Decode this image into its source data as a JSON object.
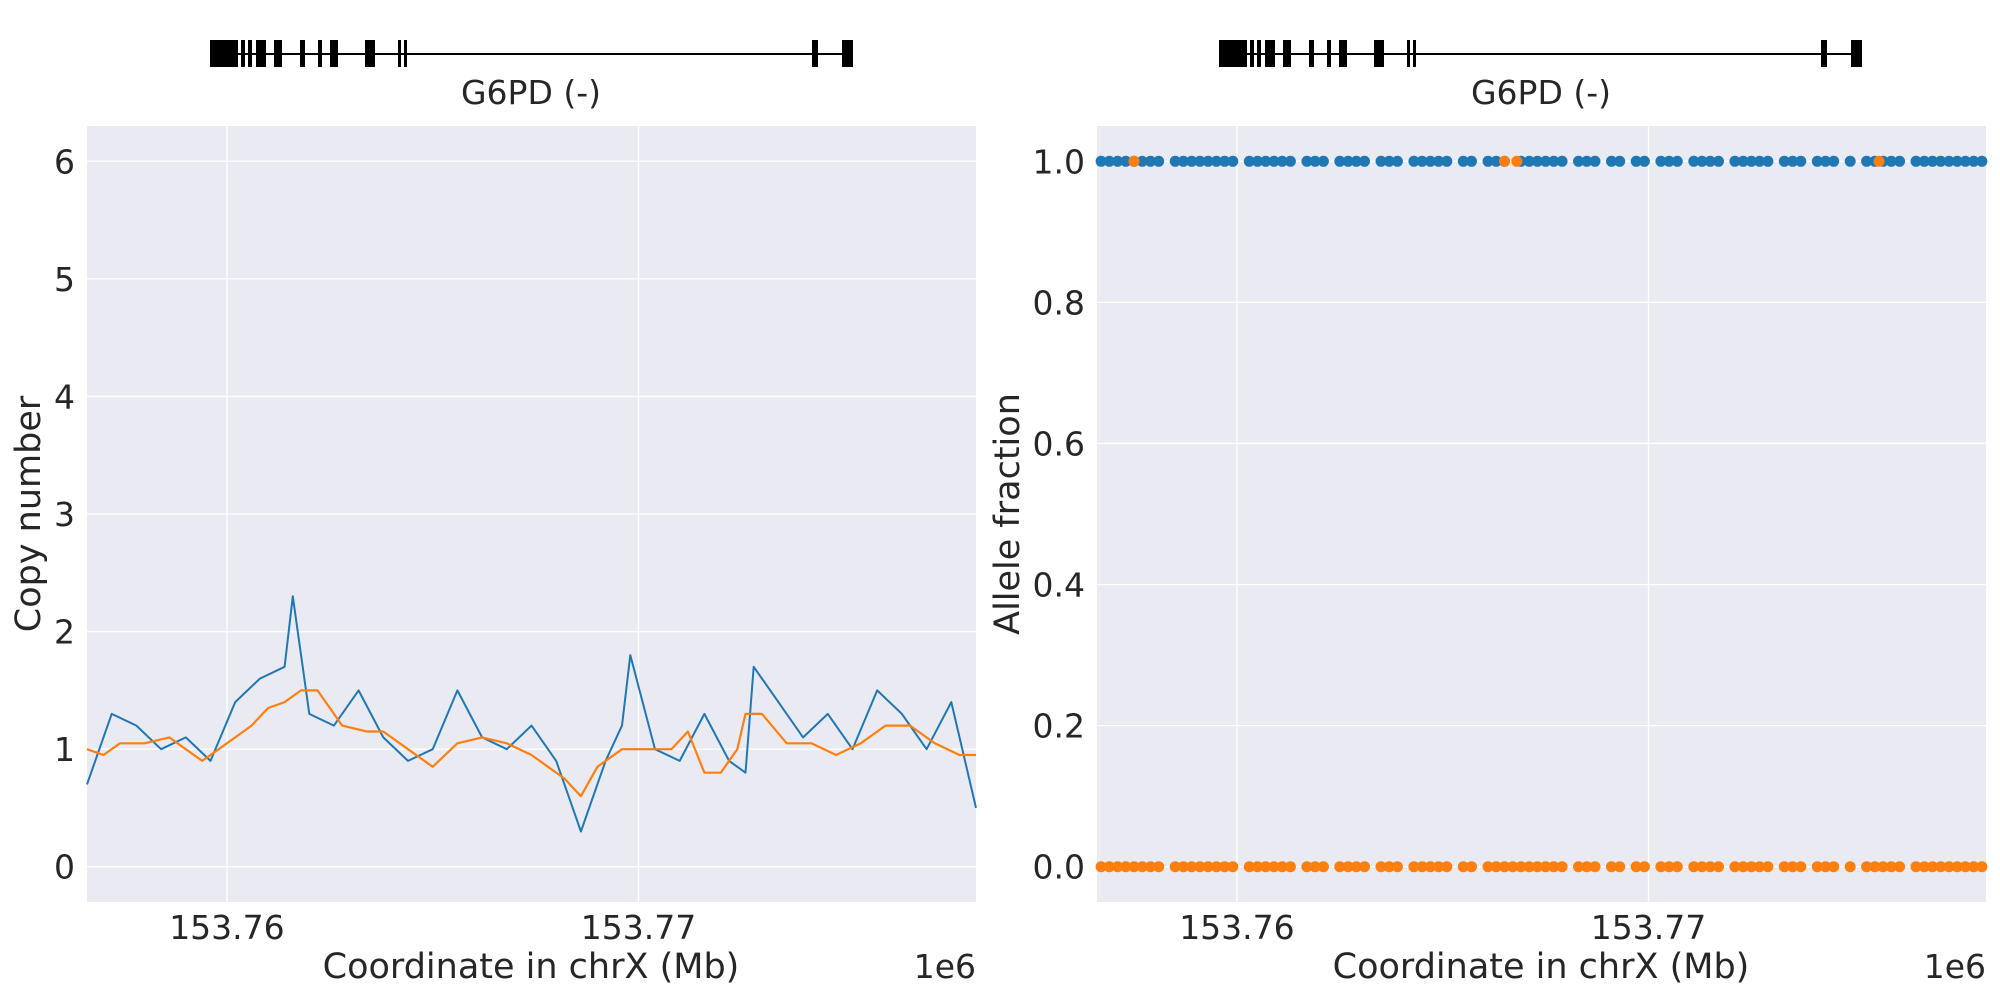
{
  "chart_data": [
    {
      "type": "line",
      "gene_label": "G6PD (-)",
      "xlabel": "Coordinate in chrX (Mb)",
      "ylabel": "Copy number",
      "offset_label": "1e6",
      "xlim": [
        153.7566,
        153.7782
      ],
      "ylim": [
        -0.3,
        6.3
      ],
      "xticks": [
        153.76,
        153.77
      ],
      "xtick_labels": [
        "153.76",
        "153.77"
      ],
      "yticks": [
        0,
        1,
        2,
        3,
        4,
        5,
        6
      ],
      "ytick_labels": [
        "0",
        "1",
        "2",
        "3",
        "4",
        "5",
        "6"
      ],
      "grid": true,
      "colors": {
        "background": "#eaeaf2",
        "raw": "#1f77b4",
        "smoothed": "#ff7f0e"
      },
      "series": [
        {
          "role": "raw",
          "x": [
            153.7566,
            153.7572,
            153.7578,
            153.7584,
            153.759,
            153.7596,
            153.7602,
            153.7608,
            153.7614,
            153.7616,
            153.762,
            153.7626,
            153.7632,
            153.7638,
            153.7644,
            153.765,
            153.7656,
            153.7662,
            153.7668,
            153.7674,
            153.768,
            153.7684,
            153.7686,
            153.7692,
            153.7696,
            153.7698,
            153.7704,
            153.771,
            153.7716,
            153.7722,
            153.7726,
            153.7728,
            153.7734,
            153.774,
            153.7746,
            153.7752,
            153.7758,
            153.7764,
            153.777,
            153.7776,
            153.7782
          ],
          "y": [
            0.7,
            1.3,
            1.2,
            1.0,
            1.1,
            0.9,
            1.4,
            1.6,
            1.7,
            2.3,
            1.3,
            1.2,
            1.5,
            1.1,
            0.9,
            1.0,
            1.5,
            1.1,
            1.0,
            1.2,
            0.9,
            0.5,
            0.3,
            0.9,
            1.2,
            1.8,
            1.0,
            0.9,
            1.3,
            0.9,
            0.8,
            1.7,
            1.4,
            1.1,
            1.3,
            1.0,
            1.5,
            1.3,
            1.0,
            1.4,
            0.5
          ]
        },
        {
          "role": "smoothed",
          "x": [
            153.7566,
            153.757,
            153.7574,
            153.758,
            153.7586,
            153.759,
            153.7594,
            153.7598,
            153.7602,
            153.7606,
            153.761,
            153.7614,
            153.7618,
            153.7622,
            153.7628,
            153.7634,
            153.7638,
            153.7644,
            153.765,
            153.7656,
            153.7662,
            153.7668,
            153.7674,
            153.7678,
            153.7682,
            153.7686,
            153.769,
            153.7696,
            153.7702,
            153.7708,
            153.7712,
            153.7716,
            153.772,
            153.7724,
            153.7726,
            153.773,
            153.7736,
            153.7742,
            153.7748,
            153.7754,
            153.776,
            153.7766,
            153.7772,
            153.7778,
            153.7782
          ],
          "y": [
            1.0,
            0.95,
            1.05,
            1.05,
            1.1,
            1.0,
            0.9,
            1.0,
            1.1,
            1.2,
            1.35,
            1.4,
            1.5,
            1.5,
            1.2,
            1.15,
            1.15,
            1.0,
            0.85,
            1.05,
            1.1,
            1.05,
            0.95,
            0.85,
            0.75,
            0.6,
            0.85,
            1.0,
            1.0,
            1.0,
            1.15,
            0.8,
            0.8,
            1.0,
            1.3,
            1.3,
            1.05,
            1.05,
            0.95,
            1.05,
            1.2,
            1.2,
            1.05,
            0.95,
            0.95
          ]
        }
      ]
    },
    {
      "type": "scatter",
      "gene_label": "G6PD (-)",
      "xlabel": "Coordinate in chrX (Mb)",
      "ylabel": "Allele fraction",
      "offset_label": "1e6",
      "xlim": [
        153.7566,
        153.7782
      ],
      "ylim": [
        -0.05,
        1.05
      ],
      "xticks": [
        153.76,
        153.77
      ],
      "xtick_labels": [
        "153.76",
        "153.77"
      ],
      "yticks": [
        0.0,
        0.2,
        0.4,
        0.6,
        0.8,
        1.0
      ],
      "ytick_labels": [
        "0.0",
        "0.2",
        "0.4",
        "0.6",
        "0.8",
        "1.0"
      ],
      "grid": true,
      "colors": {
        "background": "#eaeaf2",
        "points_top": "#1f77b4",
        "points_bottom": "#ff7f0e"
      },
      "series": [
        {
          "role": "allele-fraction-1",
          "y_value": 1.0,
          "x": [
            153.7567,
            153.7569,
            153.7571,
            153.7573,
            153.7575,
            153.7577,
            153.7579,
            153.7581,
            153.7585,
            153.7587,
            153.7589,
            153.7591,
            153.7593,
            153.7595,
            153.7597,
            153.7599,
            153.7603,
            153.7605,
            153.7607,
            153.7609,
            153.7611,
            153.7613,
            153.7617,
            153.7619,
            153.7621,
            153.7625,
            153.7627,
            153.7629,
            153.7631,
            153.7635,
            153.7637,
            153.7639,
            153.7643,
            153.7645,
            153.7647,
            153.7649,
            153.7651,
            153.7655,
            153.7657,
            153.7661,
            153.7663,
            153.7665,
            153.7669,
            153.7671,
            153.7673,
            153.7675,
            153.7677,
            153.7679,
            153.7683,
            153.7685,
            153.7687,
            153.7691,
            153.7693,
            153.7697,
            153.7699,
            153.7703,
            153.7705,
            153.7707,
            153.7711,
            153.7713,
            153.7715,
            153.7717,
            153.7721,
            153.7723,
            153.7725,
            153.7727,
            153.7729,
            153.7733,
            153.7735,
            153.7737,
            153.7741,
            153.7743,
            153.7745,
            153.7749,
            153.7753,
            153.7755,
            153.7757,
            153.7759,
            153.7761,
            153.7765,
            153.7767,
            153.7769,
            153.7771,
            153.7773,
            153.7775,
            153.7777,
            153.7779,
            153.7781
          ]
        },
        {
          "role": "allele-fraction-1-orange",
          "y_value": 1.0,
          "x": [
            153.7575,
            153.7665,
            153.7668,
            153.7756
          ]
        },
        {
          "role": "allele-fraction-0",
          "y_value": 0.0,
          "x": [
            153.7567,
            153.7569,
            153.7571,
            153.7573,
            153.7575,
            153.7577,
            153.7579,
            153.7581,
            153.7585,
            153.7587,
            153.7589,
            153.7591,
            153.7593,
            153.7595,
            153.7597,
            153.7599,
            153.7603,
            153.7605,
            153.7607,
            153.7609,
            153.7611,
            153.7613,
            153.7617,
            153.7619,
            153.7621,
            153.7625,
            153.7627,
            153.7629,
            153.7631,
            153.7635,
            153.7637,
            153.7639,
            153.7643,
            153.7645,
            153.7647,
            153.7649,
            153.7651,
            153.7655,
            153.7657,
            153.7661,
            153.7663,
            153.7665,
            153.7667,
            153.7669,
            153.7671,
            153.7673,
            153.7675,
            153.7677,
            153.7679,
            153.7683,
            153.7685,
            153.7687,
            153.7691,
            153.7693,
            153.7697,
            153.7699,
            153.7703,
            153.7705,
            153.7707,
            153.7711,
            153.7713,
            153.7715,
            153.7717,
            153.7721,
            153.7723,
            153.7725,
            153.7727,
            153.7729,
            153.7733,
            153.7735,
            153.7737,
            153.7741,
            153.7743,
            153.7745,
            153.7749,
            153.7753,
            153.7755,
            153.7757,
            153.7759,
            153.7761,
            153.7765,
            153.7767,
            153.7769,
            153.7771,
            153.7773,
            153.7775,
            153.7777,
            153.7779,
            153.7781
          ]
        }
      ]
    }
  ]
}
